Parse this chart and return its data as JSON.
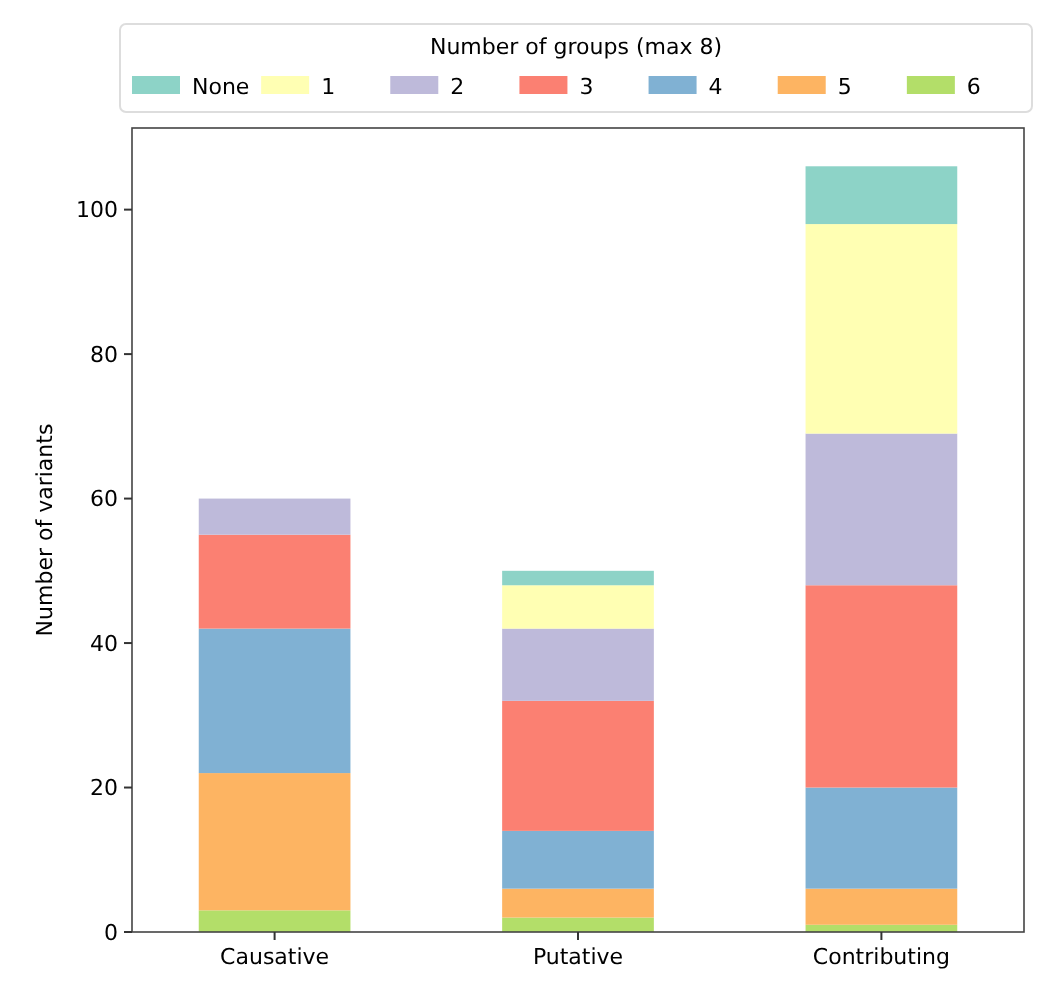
{
  "chart_data": {
    "type": "bar",
    "stacked": true,
    "categories": [
      "Causative",
      "Putative",
      "Contributing"
    ],
    "ylabel": "Number of variants",
    "legend_title": "Number of groups (max 8)",
    "legend": "top",
    "ylim": [
      0,
      111.3
    ],
    "yticks": [
      0,
      20,
      40,
      60,
      80,
      100
    ],
    "grid": false,
    "series": [
      {
        "name": "6",
        "color": "#b3de69",
        "values": [
          3,
          2,
          1
        ]
      },
      {
        "name": "5",
        "color": "#fdb462",
        "values": [
          19,
          4,
          5
        ]
      },
      {
        "name": "4",
        "color": "#80b1d3",
        "values": [
          20,
          8,
          14
        ]
      },
      {
        "name": "3",
        "color": "#fb8072",
        "values": [
          13,
          18,
          28
        ]
      },
      {
        "name": "2",
        "color": "#bebada",
        "values": [
          5,
          10,
          21
        ]
      },
      {
        "name": "1",
        "color": "#ffffb3",
        "values": [
          0,
          6,
          29
        ]
      },
      {
        "name": "None",
        "color": "#8dd3c7",
        "values": [
          0,
          2,
          8
        ]
      }
    ]
  }
}
